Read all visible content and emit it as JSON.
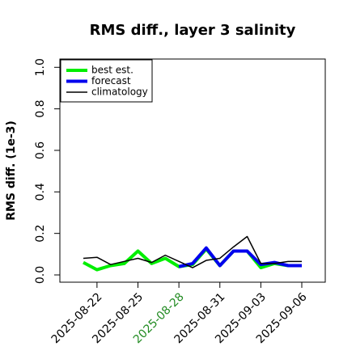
{
  "chart_data": {
    "type": "line",
    "title": "RMS diff., layer 3 salinity",
    "y_label": "RMS diff. (1e-3)",
    "categories": [
      null,
      "2025-08-22",
      null,
      null,
      "2025-08-25",
      null,
      null,
      "2025-08-28",
      null,
      null,
      "2025-08-31",
      null,
      null,
      "2025-09-03",
      null,
      null,
      "2025-09-06"
    ],
    "highlighted_categories": [
      "2025-08-28"
    ],
    "highlight_color": "#228b22",
    "series": [
      {
        "name": "best est.",
        "color": "#00ee00",
        "width": 4,
        "values": [
          0.06,
          0.025,
          0.045,
          0.055,
          0.115,
          0.055,
          0.08,
          0.04,
          0.05,
          0.125,
          0.045,
          0.115,
          0.115,
          0.035,
          0.055,
          0.045,
          0.045
        ]
      },
      {
        "name": "forecast",
        "color": "#0000ee",
        "width": 4,
        "values": [
          null,
          null,
          null,
          null,
          null,
          null,
          null,
          0.04,
          0.055,
          0.13,
          0.045,
          0.115,
          0.115,
          0.05,
          0.06,
          0.045,
          0.045
        ]
      },
      {
        "name": "climatology",
        "color": "#000000",
        "width": 1.5,
        "values": [
          0.08,
          0.085,
          0.05,
          0.065,
          0.08,
          0.06,
          0.095,
          0.065,
          0.035,
          0.07,
          0.08,
          0.135,
          0.185,
          0.055,
          0.055,
          0.065,
          0.065
        ]
      }
    ],
    "ylim": [
      -0.035,
      1.04
    ],
    "yticks": [
      {
        "value": 0,
        "label": "0.0"
      },
      0.2,
      0.4,
      0.6,
      0.8,
      {
        "value": 1,
        "label": "1.0"
      }
    ],
    "legend": "top-left"
  }
}
